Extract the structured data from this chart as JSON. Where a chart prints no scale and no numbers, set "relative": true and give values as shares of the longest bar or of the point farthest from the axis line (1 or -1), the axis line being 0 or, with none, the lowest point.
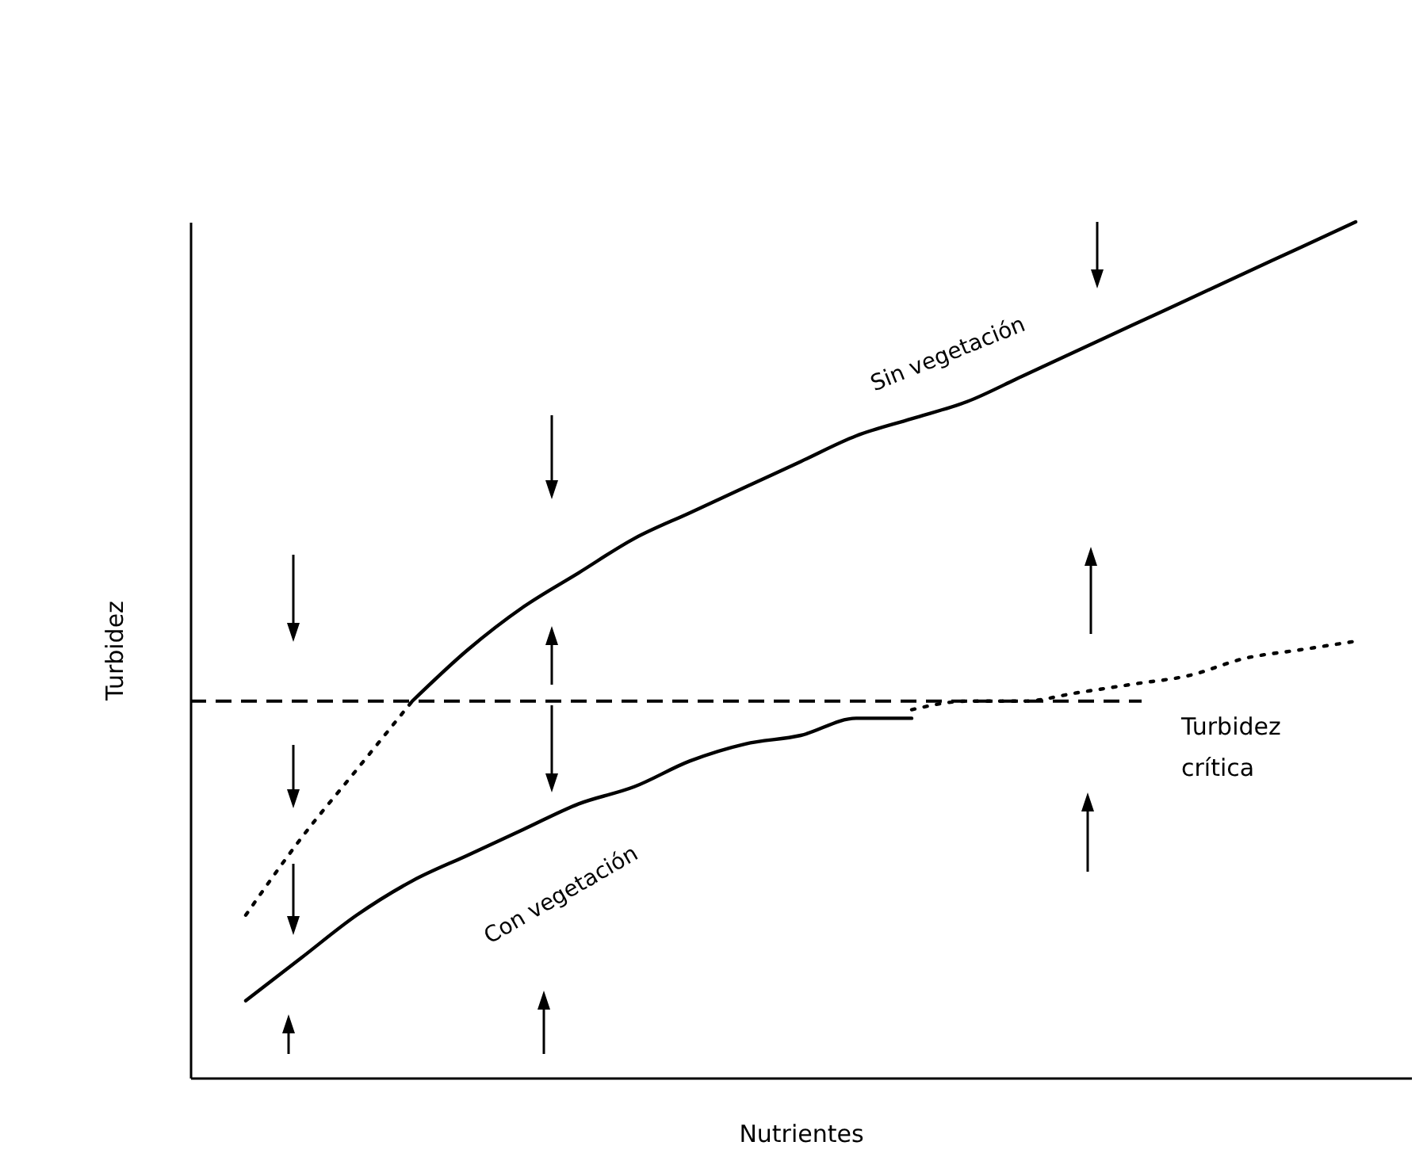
{
  "chart_data": {
    "type": "line",
    "relative": true,
    "xlabel": "Nutrientes",
    "ylabel": "Turbidez",
    "categories": [
      null,
      null,
      null,
      null,
      null,
      null,
      null,
      null,
      null,
      null,
      null,
      null,
      null,
      null,
      null,
      null,
      null,
      null,
      null,
      null,
      null
    ],
    "series": [
      {
        "name": "Sin vegetación",
        "color": "#000000",
        "line_style": "solid",
        "values": [
          null,
          null,
          null,
          0.44,
          0.5,
          0.55,
          0.59,
          0.63,
          0.66,
          0.69,
          0.72,
          0.75,
          0.77,
          0.79,
          0.82,
          0.85,
          0.88,
          0.91,
          0.94,
          0.97,
          1.0
        ]
      },
      {
        "name": "Con vegetación",
        "color": "#000000",
        "line_style": "solid",
        "values": [
          0.09,
          0.14,
          0.19,
          0.23,
          0.26,
          0.29,
          0.32,
          0.34,
          0.37,
          0.39,
          0.4,
          0.42,
          0.42,
          null,
          null,
          null,
          null,
          null,
          null,
          null,
          null
        ]
      },
      {
        "color": "#000000",
        "line_style": "dotted",
        "values": [
          0.19,
          0.28,
          0.36,
          0.44,
          null,
          null,
          null,
          null,
          null,
          null,
          null,
          null,
          0.43,
          0.44,
          0.44,
          0.45,
          0.46,
          0.47,
          0.49,
          0.5,
          0.51
        ]
      }
    ],
    "ref_lines": [
      {
        "axis": "y",
        "value": 0.44,
        "label": "Turbidez crítica",
        "color": "#000000",
        "line_style": "dashed"
      }
    ],
    "grid": false,
    "tick_labels": false,
    "marker": "none"
  }
}
